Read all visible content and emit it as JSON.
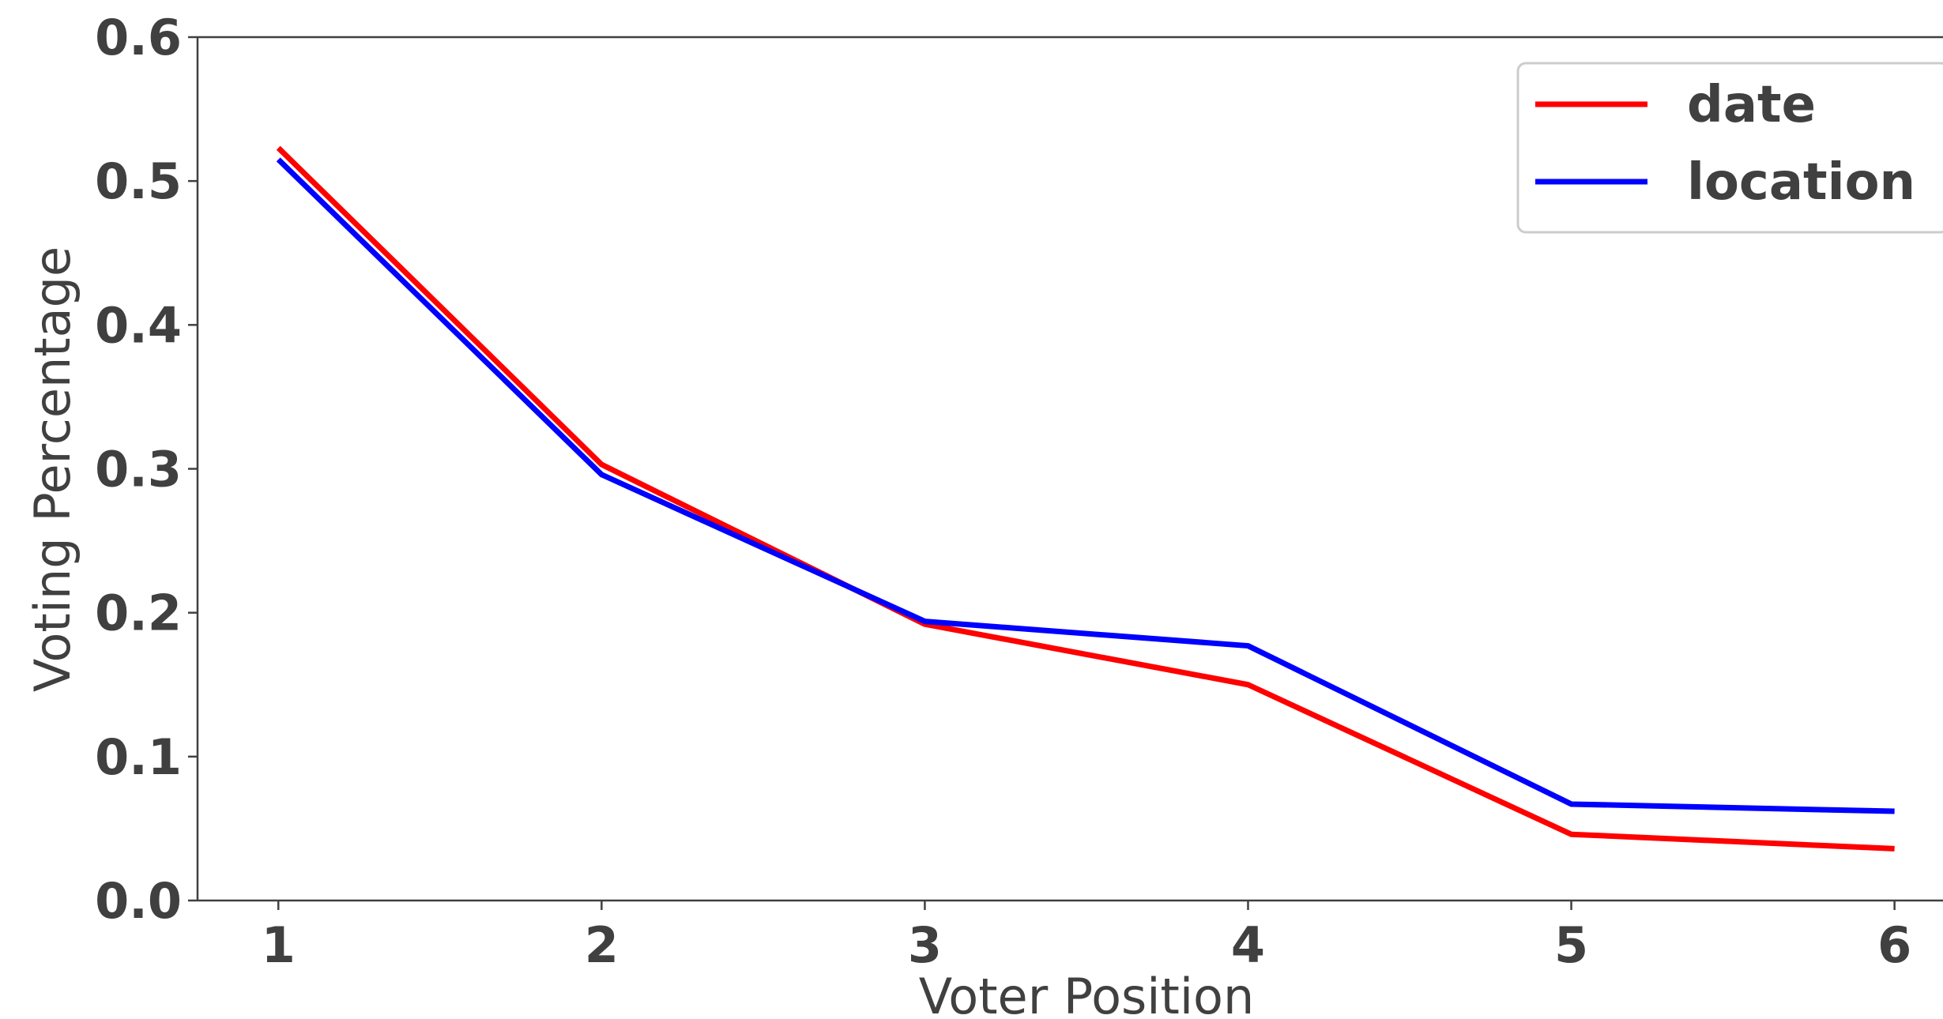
{
  "chart_data": {
    "type": "line",
    "x": [
      1,
      2,
      3,
      4,
      5,
      6
    ],
    "series": [
      {
        "name": "date",
        "color": "#ff0000",
        "values": [
          0.523,
          0.303,
          0.192,
          0.15,
          0.046,
          0.036
        ]
      },
      {
        "name": "location",
        "color": "#0000ff",
        "values": [
          0.515,
          0.296,
          0.194,
          0.177,
          0.067,
          0.062
        ]
      }
    ],
    "xlabel": "Voter Position",
    "ylabel": "Voting Percentage",
    "xlim": [
      0.75,
      6.15
    ],
    "ylim": [
      0.0,
      0.6
    ],
    "xticks": [
      "1",
      "2",
      "3",
      "4",
      "5",
      "6"
    ],
    "yticks": [
      "0.0",
      "0.1",
      "0.2",
      "0.3",
      "0.4",
      "0.5",
      "0.6"
    ],
    "ytick_values": [
      0.0,
      0.1,
      0.2,
      0.3,
      0.4,
      0.5,
      0.6
    ],
    "grid": false,
    "legend": "top-right",
    "axis_color": "#404040"
  }
}
